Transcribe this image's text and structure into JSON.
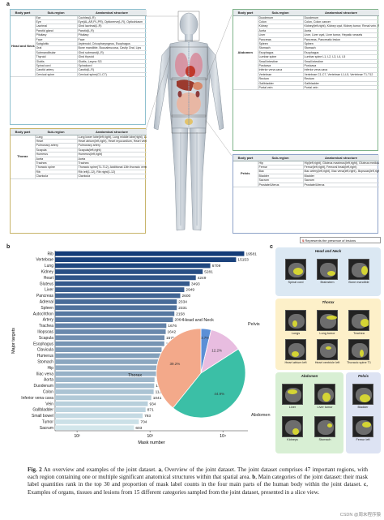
{
  "panel_letters": {
    "a": "a",
    "b": "b",
    "c": "c"
  },
  "headers": {
    "body_part": "Body part",
    "sub_region": "Sub-region",
    "anatomical_structure": "Anatomical structure"
  },
  "tables": {
    "head_neck": {
      "body_part": "Head and Neck",
      "rows": [
        {
          "sub": "Ear",
          "struct": "Cochlea(L,R)"
        },
        {
          "sub": "Eye",
          "struct": "Eye(AL,AR,PL,PR), Opticnerve(L,R), Opticchiasm"
        },
        {
          "sub": "Lacrimal",
          "struct": "Glnd lacrimal(L,R)"
        },
        {
          "sub": "Parotid gland",
          "struct": "Parotid(L,R)"
        },
        {
          "sub": "Pituitary",
          "struct": "Pituitary"
        },
        {
          "sub": "Face",
          "struct": "Face"
        },
        {
          "sub": "Subglottic",
          "struct": "Arytenoid, Cricopharyngeus, Esophagus"
        },
        {
          "sub": "Oral",
          "struct": "Bone mandible, Buccalmucosa, Cavity Oral, Lips"
        },
        {
          "sub": "Submandibular",
          "struct": "Glnd submand(L,R)"
        },
        {
          "sub": "Thyroid",
          "struct": "Glnd thyroid"
        },
        {
          "sub": "Glottis",
          "struct": "Glottis, Larynx SG"
        },
        {
          "sub": "Spinal cord",
          "struct": "Spinalcord"
        },
        {
          "sub": "Carotid artery",
          "struct": "Carotid(L,R)"
        },
        {
          "sub": "Cervical spine",
          "struct": "Cervical spine(C1-C7)"
        }
      ]
    },
    "thorax": {
      "body_part": "Thorax",
      "rows": [
        {
          "sub": "Lung",
          "struct": "Lung lower lobe(left,right), Lung middle lobe(right), Lung upper lobe(left,right), Lung tumor"
        },
        {
          "sub": "Heart",
          "struct": "Heart atrium(left,right), Heart myocardium, Heart ventricle(left,right)"
        },
        {
          "sub": "Pulmonary artery",
          "struct": "Pulmonary artery"
        },
        {
          "sub": "Scapula",
          "struct": "Scapula(left,right)"
        },
        {
          "sub": "Humerus",
          "struct": "Humerus(left,right)"
        },
        {
          "sub": "Aorta",
          "struct": "Aorta"
        },
        {
          "sub": "Trachea",
          "struct": "Trachea"
        },
        {
          "sub": "Thoracic spine",
          "struct": "Thoracic spine(T1-T12), Additional 13th thoracic vertebra T13"
        },
        {
          "sub": "Rib",
          "struct": "Rib left(1-12), Rib right(1-12)"
        },
        {
          "sub": "Clavicula",
          "struct": "Clavicula"
        }
      ]
    },
    "abdomen": {
      "body_part": "Abdomen",
      "rows": [
        {
          "sub": "Duodenum",
          "struct": "Duodenum"
        },
        {
          "sub": "Colon",
          "struct": "Colon, Colon cancer"
        },
        {
          "sub": "Kidney",
          "struct": "Kidney(left,right), Kidney cyst, Kidney tumor, Renal vein, Renal artery, Renal pelvis"
        },
        {
          "sub": "Aorta",
          "struct": "Aorta"
        },
        {
          "sub": "Liver",
          "struct": "Liver, Liver cyst, Liver tumor, Hepatic vessels"
        },
        {
          "sub": "Pancreas",
          "struct": "Pancreas, Pancreatic lesion"
        },
        {
          "sub": "Spleen",
          "struct": "Spleen"
        },
        {
          "sub": "Stomach",
          "struct": "Stomach"
        },
        {
          "sub": "Esophagus",
          "struct": "Esophagus"
        },
        {
          "sub": "Lumbar spine",
          "struct": "Lumbar spine L1, L2, L3, L4, L5"
        },
        {
          "sub": "Small intestine",
          "struct": "Small intestine"
        },
        {
          "sub": "Postcava",
          "struct": "Postcava"
        },
        {
          "sub": "Inferior vena cava",
          "struct": "Inferior vena cava"
        },
        {
          "sub": "Vertebrae",
          "struct": "Vertebrae C1-C7, Vertebrae L1-L5, Vertebrae T1-T12"
        },
        {
          "sub": "Rectum",
          "struct": "Rectum"
        },
        {
          "sub": "Gallbladder",
          "struct": "Gallbladder"
        },
        {
          "sub": "Portal vein",
          "struct": "Portal vein"
        }
      ]
    },
    "pelvis": {
      "body_part": "Pelvis",
      "rows": [
        {
          "sub": "Hip",
          "struct": "Hip(left,right), Gluteus maximus(left,right), Gluteus medius(left,right), Gluteus minimus(left,right)"
        },
        {
          "sub": "Femur",
          "struct": "Femur(left,right), Femoral head(left,right)"
        },
        {
          "sub": "Iliac",
          "struct": "Iliac artery(left,right), Iliac vena(left,right), Iliopsoas(left,right)"
        },
        {
          "sub": "Bladder",
          "struct": "Bladder"
        },
        {
          "sub": "Sacrum",
          "struct": "Sacrum"
        },
        {
          "sub": "Prostate/Uterus",
          "struct": "Prostate/Uterus"
        }
      ]
    }
  },
  "lesion_note": {
    "mark": "$",
    "text": "Represents the presence of lesions"
  },
  "chart_data": [
    {
      "type": "bar",
      "orientation": "horizontal",
      "xscale": "log",
      "xlabel": "Mask number",
      "ylabel": "Major targets",
      "xticks": [
        "10²",
        "10³",
        "10⁴"
      ],
      "categories": [
        "Rib",
        "Vertebrae",
        "Lung",
        "Kidney",
        "Heart",
        "Gluteus",
        "Liver",
        "Pancreas",
        "Adrenal",
        "Spleen",
        "Autochthon",
        "Artery",
        "Trachea",
        "Iliopsoas",
        "Scapula",
        "Esophagus",
        "Clavicula",
        "Humerus",
        "Stomach",
        "Hip",
        "Iliac vena",
        "Aorta",
        "Duodenum",
        "Colon",
        "Inferior vena cava",
        "Vein",
        "Gallbladder",
        "Small bowel",
        "Tumor",
        "Sacrum"
      ],
      "values": [
        19581,
        15153,
        6709,
        5281,
        4249,
        3493,
        2949,
        2600,
        2334,
        2331,
        2158,
        2064,
        1676,
        1642,
        1579,
        1570,
        1444,
        1400,
        1379,
        1252,
        1234,
        1154,
        1141,
        1122,
        1041,
        934,
        871,
        793,
        704,
        603
      ]
    },
    {
      "type": "pie",
      "labels": [
        "Head and Neck",
        "Pelvis",
        "Abdomen",
        "Thorax"
      ],
      "values": [
        3.7,
        12.2,
        44.9,
        39.2
      ],
      "value_labels": [
        "3.7%",
        "12.2%",
        "44.9%",
        "39.2%"
      ],
      "colors": [
        "#5b8fd6",
        "#e8bde0",
        "#3bbfa6",
        "#f3a98a"
      ]
    }
  ],
  "examples": {
    "head_neck": {
      "title": "Head and Neck",
      "items": [
        "Spinal cord",
        "Brainstem",
        "Bone mandible"
      ]
    },
    "thorax": {
      "title": "Thorax",
      "items": [
        "Lungs",
        "Lung tumor",
        "Trachea",
        "Heart atrium left",
        "Heart ventricle left",
        "Thoracic spine T1"
      ]
    },
    "abdomen": {
      "title": "Abdomen",
      "items": [
        "Liver",
        "Liver tumor",
        "Kidneys",
        "Stomach"
      ]
    },
    "pelvis": {
      "title": "Pelvis",
      "items": [
        "Bladder",
        "Femur left"
      ]
    }
  },
  "caption": {
    "fig": "Fig. 2",
    "text_1": " An overview and examples of the joint dataset. ",
    "a": "a",
    "text_2": ", Overview of the joint dataset. The joint dataset comprises 47 important regions, with each region containing one or multiple significant anatomical structures within that spatial area. ",
    "b": "b",
    "text_3": ", Main categories of the joint dataset: their mask label quantities rank in the top 30 and proportion of mask label counts in the four main parts of the human body within the joint dataset. ",
    "c": "c",
    "text_4": ", Examples of organs, tissues and lesions from 15 different categories sampled from the joint dataset, presented in a slice view."
  },
  "watermark": "CSDN @周末程序猿"
}
